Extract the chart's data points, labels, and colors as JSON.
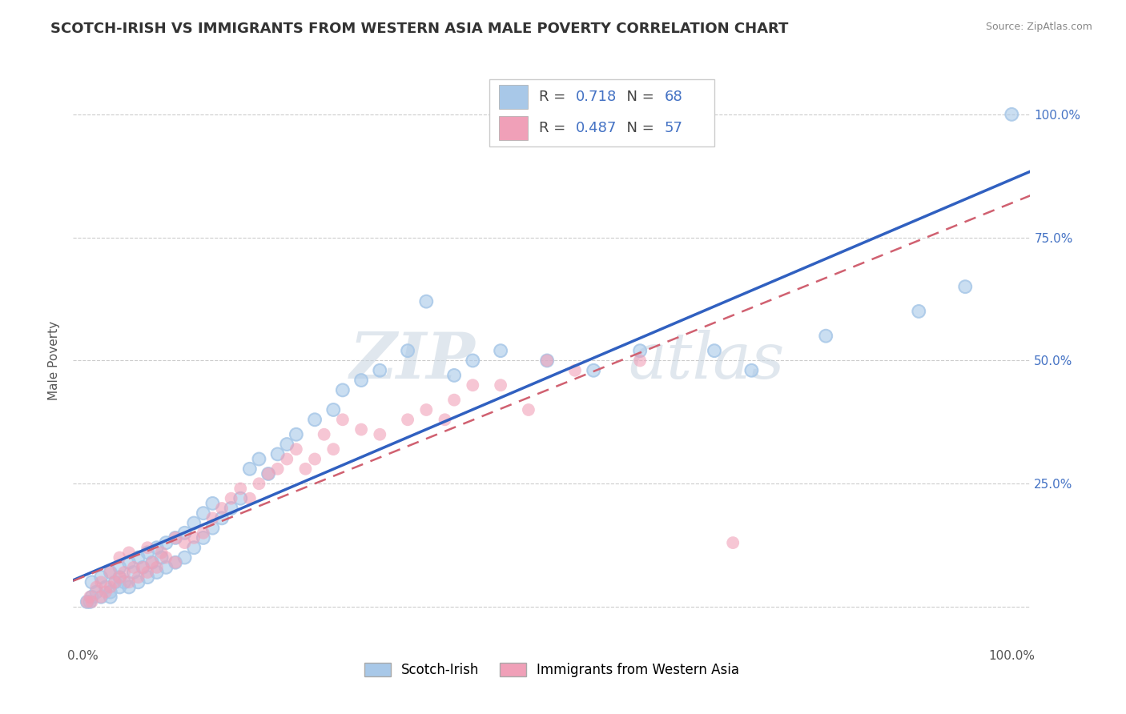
{
  "title": "SCOTCH-IRISH VS IMMIGRANTS FROM WESTERN ASIA MALE POVERTY CORRELATION CHART",
  "source": "Source: ZipAtlas.com",
  "ylabel": "Male Poverty",
  "series1_color": "#A8C8E8",
  "series2_color": "#F0A0B8",
  "series1_label": "Scotch-Irish",
  "series2_label": "Immigrants from Western Asia",
  "R1": 0.718,
  "N1": 68,
  "R2": 0.487,
  "N2": 57,
  "line1_color": "#3060C0",
  "line2_color": "#D06070",
  "watermark_zip": "ZIP",
  "watermark_atlas": "atlas",
  "title_fontsize": 13,
  "axis_label_fontsize": 11,
  "tick_fontsize": 11,
  "background_color": "#FFFFFF",
  "grid_color": "#CCCCCC",
  "scatter1_x": [
    0.005,
    0.008,
    0.01,
    0.01,
    0.015,
    0.02,
    0.02,
    0.025,
    0.03,
    0.03,
    0.03,
    0.035,
    0.04,
    0.04,
    0.04,
    0.045,
    0.05,
    0.05,
    0.055,
    0.06,
    0.06,
    0.065,
    0.07,
    0.07,
    0.075,
    0.08,
    0.08,
    0.085,
    0.09,
    0.09,
    0.1,
    0.1,
    0.11,
    0.11,
    0.12,
    0.12,
    0.13,
    0.13,
    0.14,
    0.14,
    0.15,
    0.16,
    0.17,
    0.18,
    0.19,
    0.2,
    0.21,
    0.22,
    0.23,
    0.25,
    0.27,
    0.28,
    0.3,
    0.32,
    0.35,
    0.37,
    0.4,
    0.42,
    0.45,
    0.5,
    0.55,
    0.6,
    0.68,
    0.72,
    0.8,
    0.9,
    0.95,
    1.0
  ],
  "scatter1_y": [
    0.01,
    0.01,
    0.02,
    0.05,
    0.03,
    0.02,
    0.06,
    0.04,
    0.03,
    0.07,
    0.02,
    0.05,
    0.04,
    0.08,
    0.06,
    0.05,
    0.04,
    0.09,
    0.07,
    0.05,
    0.1,
    0.08,
    0.06,
    0.11,
    0.09,
    0.07,
    0.12,
    0.1,
    0.08,
    0.13,
    0.09,
    0.14,
    0.1,
    0.15,
    0.12,
    0.17,
    0.14,
    0.19,
    0.16,
    0.21,
    0.18,
    0.2,
    0.22,
    0.28,
    0.3,
    0.27,
    0.31,
    0.33,
    0.35,
    0.38,
    0.4,
    0.44,
    0.46,
    0.48,
    0.52,
    0.62,
    0.47,
    0.5,
    0.52,
    0.5,
    0.48,
    0.52,
    0.52,
    0.48,
    0.55,
    0.6,
    0.65,
    1.0
  ],
  "scatter2_x": [
    0.005,
    0.008,
    0.01,
    0.015,
    0.02,
    0.02,
    0.025,
    0.03,
    0.03,
    0.035,
    0.04,
    0.04,
    0.045,
    0.05,
    0.05,
    0.055,
    0.06,
    0.065,
    0.07,
    0.07,
    0.075,
    0.08,
    0.085,
    0.09,
    0.1,
    0.1,
    0.11,
    0.12,
    0.13,
    0.14,
    0.15,
    0.16,
    0.17,
    0.18,
    0.19,
    0.2,
    0.21,
    0.22,
    0.23,
    0.24,
    0.25,
    0.26,
    0.27,
    0.28,
    0.3,
    0.32,
    0.35,
    0.37,
    0.39,
    0.4,
    0.42,
    0.45,
    0.48,
    0.5,
    0.53,
    0.6,
    0.7
  ],
  "scatter2_y": [
    0.01,
    0.02,
    0.01,
    0.04,
    0.02,
    0.05,
    0.03,
    0.04,
    0.07,
    0.05,
    0.06,
    0.1,
    0.07,
    0.05,
    0.11,
    0.08,
    0.06,
    0.08,
    0.07,
    0.12,
    0.09,
    0.08,
    0.11,
    0.1,
    0.09,
    0.14,
    0.13,
    0.14,
    0.15,
    0.18,
    0.2,
    0.22,
    0.24,
    0.22,
    0.25,
    0.27,
    0.28,
    0.3,
    0.32,
    0.28,
    0.3,
    0.35,
    0.32,
    0.38,
    0.36,
    0.35,
    0.38,
    0.4,
    0.38,
    0.42,
    0.45,
    0.45,
    0.4,
    0.5,
    0.48,
    0.5,
    0.13
  ]
}
